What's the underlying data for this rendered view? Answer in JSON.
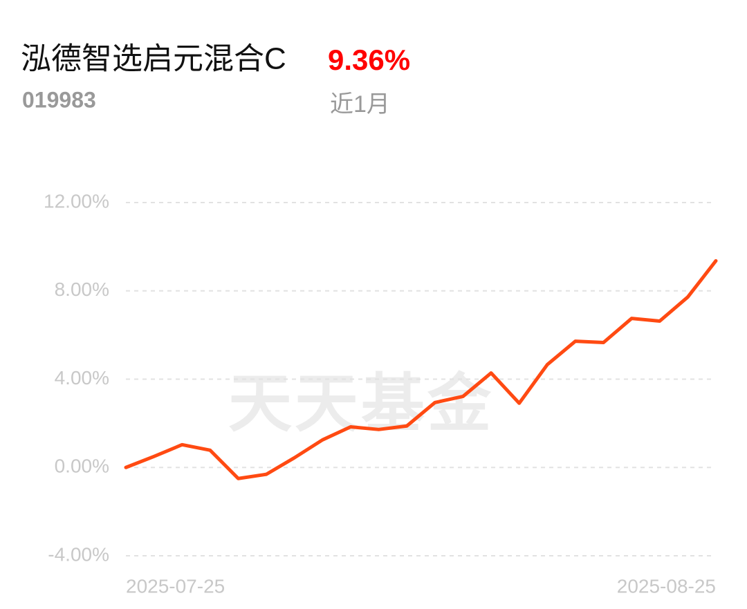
{
  "chart_data": {
    "type": "line",
    "title": "泓德智选启元混合C",
    "fund_code": "019983",
    "period_return": "9.36%",
    "period": "近1月",
    "watermark": "天天基金",
    "categories": [
      "2025-07-25",
      null,
      null,
      null,
      null,
      null,
      null,
      null,
      null,
      null,
      null,
      null,
      null,
      null,
      null,
      null,
      null,
      null,
      null,
      null,
      null,
      "2025-08-25"
    ],
    "series": [
      {
        "name": "泓德智选启元混合C",
        "color": "#ff4a12",
        "values": [
          0,
          0.5,
          1.03,
          0.78,
          -0.5,
          -0.31,
          0.44,
          1.25,
          1.84,
          1.72,
          1.88,
          2.94,
          3.22,
          4.28,
          2.91,
          4.66,
          5.72,
          5.66,
          6.75,
          6.63,
          7.72,
          9.36
        ]
      }
    ],
    "ylim": [
      -4,
      12
    ],
    "yticks": [
      {
        "value": -4,
        "label": "-4.00%"
      },
      {
        "value": 0,
        "label": "0.00%"
      },
      {
        "value": 4,
        "label": "4.00%"
      },
      {
        "value": 8,
        "label": "8.00%"
      },
      {
        "value": 12,
        "label": "12.00%"
      }
    ],
    "grid": true
  }
}
